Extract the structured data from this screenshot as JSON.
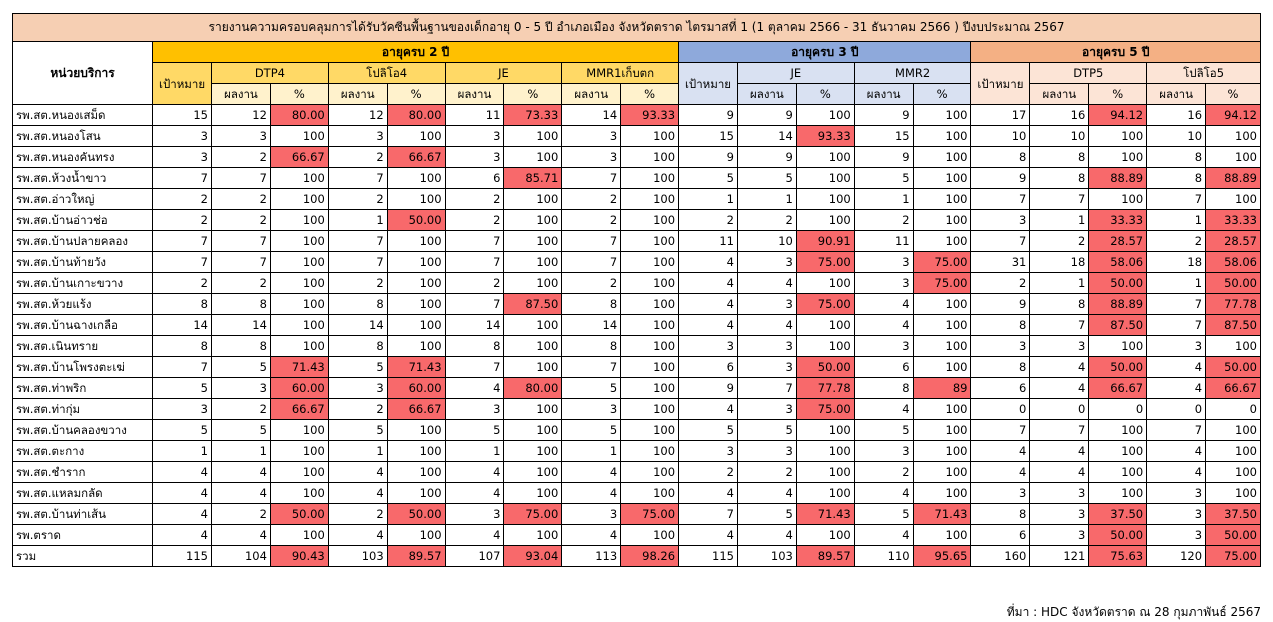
{
  "title": "รายงานความครอบคลุมการได้รับวัคซีนพื้นฐานของเด็กอายุ 0 - 5 ปี อำเภอเมือง จังหวัดตราด ไตรมาสที่ 1 (1 ตุลาคม 2566 - 31 ธันวาคม 2566 ) ปีงบประมาณ 2567",
  "unit_header": "หน่วยบริการ",
  "groups": [
    "อายุครบ 2 ปี",
    "อายุครบ 3 ปี",
    "อายุครบ 5 ปี"
  ],
  "target_label": "เป้าหมาย",
  "vaccines": {
    "age2": [
      "DTP4",
      "โปลิโอ4",
      "JE",
      "MMR1เก็บตก"
    ],
    "age3": [
      "JE",
      "MMR2"
    ],
    "age5": [
      "DTP5",
      "โปลิโอ5"
    ]
  },
  "result_label": "ผลงาน",
  "pct_label": "%",
  "colors": {
    "highlight": "#f8696b",
    "age2": "#ffc000",
    "age3": "#8ea9db",
    "age5": "#f4b084",
    "title": "#f6cfb3"
  },
  "rows": [
    {
      "name": "รพ.สต.หนองเสม็ด",
      "c": [
        "15",
        "12",
        "80.00",
        "12",
        "80.00",
        "11",
        "73.33",
        "14",
        "93.33",
        "9",
        "9",
        "100",
        "9",
        "100",
        "17",
        "16",
        "94.12",
        "16",
        "94.12"
      ]
    },
    {
      "name": "รพ.สต.หนองโสน",
      "c": [
        "3",
        "3",
        "100",
        "3",
        "100",
        "3",
        "100",
        "3",
        "100",
        "15",
        "14",
        "93.33",
        "15",
        "100",
        "10",
        "10",
        "100",
        "10",
        "100"
      ]
    },
    {
      "name": "รพ.สต.หนองคันทรง",
      "c": [
        "3",
        "2",
        "66.67",
        "2",
        "66.67",
        "3",
        "100",
        "3",
        "100",
        "9",
        "9",
        "100",
        "9",
        "100",
        "8",
        "8",
        "100",
        "8",
        "100"
      ]
    },
    {
      "name": "รพ.สต.ห้วงน้ำขาว",
      "c": [
        "7",
        "7",
        "100",
        "7",
        "100",
        "6",
        "85.71",
        "7",
        "100",
        "5",
        "5",
        "100",
        "5",
        "100",
        "9",
        "8",
        "88.89",
        "8",
        "88.89"
      ]
    },
    {
      "name": "รพ.สต.อ่าวใหญ่",
      "c": [
        "2",
        "2",
        "100",
        "2",
        "100",
        "2",
        "100",
        "2",
        "100",
        "1",
        "1",
        "100",
        "1",
        "100",
        "7",
        "7",
        "100",
        "7",
        "100"
      ]
    },
    {
      "name": "รพ.สต.บ้านอ่าวช่อ",
      "c": [
        "2",
        "2",
        "100",
        "1",
        "50.00",
        "2",
        "100",
        "2",
        "100",
        "2",
        "2",
        "100",
        "2",
        "100",
        "3",
        "1",
        "33.33",
        "1",
        "33.33"
      ]
    },
    {
      "name": "รพ.สต.บ้านปลายคลอง",
      "c": [
        "7",
        "7",
        "100",
        "7",
        "100",
        "7",
        "100",
        "7",
        "100",
        "11",
        "10",
        "90.91",
        "11",
        "100",
        "7",
        "2",
        "28.57",
        "2",
        "28.57"
      ]
    },
    {
      "name": "รพ.สต.บ้านท้ายวัง",
      "c": [
        "7",
        "7",
        "100",
        "7",
        "100",
        "7",
        "100",
        "7",
        "100",
        "4",
        "3",
        "75.00",
        "3",
        "75.00",
        "31",
        "18",
        "58.06",
        "18",
        "58.06"
      ]
    },
    {
      "name": "รพ.สต.บ้านเกาะขวาง",
      "c": [
        "2",
        "2",
        "100",
        "2",
        "100",
        "2",
        "100",
        "2",
        "100",
        "4",
        "4",
        "100",
        "3",
        "75.00",
        "2",
        "1",
        "50.00",
        "1",
        "50.00"
      ]
    },
    {
      "name": "รพ.สต.ห้วยแร้ง",
      "c": [
        "8",
        "8",
        "100",
        "8",
        "100",
        "7",
        "87.50",
        "8",
        "100",
        "4",
        "3",
        "75.00",
        "4",
        "100",
        "9",
        "8",
        "88.89",
        "7",
        "77.78"
      ]
    },
    {
      "name": "รพ.สต.บ้านฉางเกลือ",
      "c": [
        "14",
        "14",
        "100",
        "14",
        "100",
        "14",
        "100",
        "14",
        "100",
        "4",
        "4",
        "100",
        "4",
        "100",
        "8",
        "7",
        "87.50",
        "7",
        "87.50"
      ]
    },
    {
      "name": "รพ.สต.เนินทราย",
      "c": [
        "8",
        "8",
        "100",
        "8",
        "100",
        "8",
        "100",
        "8",
        "100",
        "3",
        "3",
        "100",
        "3",
        "100",
        "3",
        "3",
        "100",
        "3",
        "100"
      ]
    },
    {
      "name": "รพ.สต.บ้านโพรงตะเฆ่",
      "c": [
        "7",
        "5",
        "71.43",
        "5",
        "71.43",
        "7",
        "100",
        "7",
        "100",
        "6",
        "3",
        "50.00",
        "6",
        "100",
        "8",
        "4",
        "50.00",
        "4",
        "50.00"
      ]
    },
    {
      "name": "รพ.สต.ท่าพริก",
      "c": [
        "5",
        "3",
        "60.00",
        "3",
        "60.00",
        "4",
        "80.00",
        "5",
        "100",
        "9",
        "7",
        "77.78",
        "8",
        "89",
        "6",
        "4",
        "66.67",
        "4",
        "66.67"
      ]
    },
    {
      "name": "รพ.สต.ท่ากุ่ม",
      "c": [
        "3",
        "2",
        "66.67",
        "2",
        "66.67",
        "3",
        "100",
        "3",
        "100",
        "4",
        "3",
        "75.00",
        "4",
        "100",
        "0",
        "0",
        "0",
        "0",
        "0"
      ]
    },
    {
      "name": "รพ.สต.บ้านคลองขวาง",
      "c": [
        "5",
        "5",
        "100",
        "5",
        "100",
        "5",
        "100",
        "5",
        "100",
        "5",
        "5",
        "100",
        "5",
        "100",
        "7",
        "7",
        "100",
        "7",
        "100"
      ]
    },
    {
      "name": "รพ.สต.ตะกาง",
      "c": [
        "1",
        "1",
        "100",
        "1",
        "100",
        "1",
        "100",
        "1",
        "100",
        "3",
        "3",
        "100",
        "3",
        "100",
        "4",
        "4",
        "100",
        "4",
        "100"
      ]
    },
    {
      "name": "รพ.สต.ชำราก",
      "c": [
        "4",
        "4",
        "100",
        "4",
        "100",
        "4",
        "100",
        "4",
        "100",
        "2",
        "2",
        "100",
        "2",
        "100",
        "4",
        "4",
        "100",
        "4",
        "100"
      ]
    },
    {
      "name": "รพ.สต.แหลมกลัด",
      "c": [
        "4",
        "4",
        "100",
        "4",
        "100",
        "4",
        "100",
        "4",
        "100",
        "4",
        "4",
        "100",
        "4",
        "100",
        "3",
        "3",
        "100",
        "3",
        "100"
      ]
    },
    {
      "name": "รพ.สต.บ้านท่าเส้น",
      "c": [
        "4",
        "2",
        "50.00",
        "2",
        "50.00",
        "3",
        "75.00",
        "3",
        "75.00",
        "7",
        "5",
        "71.43",
        "5",
        "71.43",
        "8",
        "3",
        "37.50",
        "3",
        "37.50"
      ]
    },
    {
      "name": "รพ.ตราด",
      "c": [
        "4",
        "4",
        "100",
        "4",
        "100",
        "4",
        "100",
        "4",
        "100",
        "4",
        "4",
        "100",
        "4",
        "100",
        "6",
        "3",
        "50.00",
        "3",
        "50.00"
      ]
    },
    {
      "name": "รวม",
      "c": [
        "115",
        "104",
        "90.43",
        "103",
        "89.57",
        "107",
        "93.04",
        "113",
        "98.26",
        "115",
        "103",
        "89.57",
        "110",
        "95.65",
        "160",
        "121",
        "75.63",
        "120",
        "75.00"
      ]
    }
  ],
  "footer": "ที่มา : HDC จังหวัดตราด ณ 28 กุมภาพันธ์ 2567"
}
